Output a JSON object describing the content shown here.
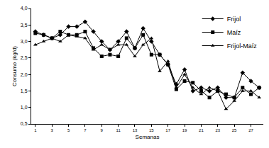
{
  "chart_data": {
    "type": "line",
    "x_label": "Semanas",
    "y_label": "Consumo (kg/d)",
    "x": [
      1,
      2,
      3,
      4,
      5,
      6,
      7,
      8,
      9,
      10,
      11,
      12,
      13,
      14,
      15,
      16,
      17,
      18,
      19,
      20,
      21,
      22,
      23,
      24,
      25,
      26,
      27,
      28
    ],
    "series": [
      {
        "name": "Frijol",
        "color": "#000000",
        "marker": "diamond",
        "values": [
          3.3,
          3.2,
          3.1,
          3.2,
          3.45,
          3.45,
          3.6,
          3.3,
          3.0,
          2.75,
          3.0,
          3.3,
          2.8,
          3.4,
          3.0,
          2.6,
          2.3,
          1.7,
          2.15,
          1.5,
          1.6,
          1.5,
          1.6,
          1.3,
          1.3,
          2.05,
          1.8,
          1.6
        ]
      },
      {
        "name": "Maíz",
        "color": "#000000",
        "marker": "square",
        "values": [
          3.25,
          3.2,
          3.1,
          3.3,
          3.2,
          3.2,
          3.3,
          2.8,
          2.55,
          2.6,
          2.55,
          3.1,
          2.8,
          3.2,
          2.6,
          2.6,
          2.3,
          1.55,
          1.8,
          1.75,
          1.5,
          1.3,
          1.5,
          1.4,
          1.3,
          1.6,
          1.4,
          1.6
        ]
      },
      {
        "name": "Frijol-Maíz",
        "color": "#000000",
        "marker": "triangle-up",
        "values": [
          2.9,
          3.0,
          3.1,
          3.0,
          3.2,
          3.15,
          3.1,
          2.75,
          2.9,
          2.75,
          2.9,
          2.9,
          2.55,
          2.9,
          3.1,
          2.1,
          2.4,
          1.6,
          2.0,
          1.6,
          1.4,
          1.6,
          1.5,
          0.95,
          1.2,
          1.5,
          1.5,
          1.3
        ]
      }
    ],
    "xlim": [
      0.5,
      28.5
    ],
    "xticks": [
      1,
      3,
      5,
      7,
      9,
      11,
      13,
      15,
      17,
      19,
      21,
      23,
      25,
      27
    ],
    "ylim": [
      0.5,
      4.0
    ],
    "yticks": [
      {
        "value": 0.5,
        "label": "0,5"
      },
      {
        "value": 1.0,
        "label": "1,0"
      },
      {
        "value": 1.5,
        "label": "1,5"
      },
      {
        "value": 2.0,
        "label": "2,0"
      },
      {
        "value": 2.5,
        "label": "2,5"
      },
      {
        "value": 3.0,
        "label": "3,0"
      },
      {
        "value": 3.5,
        "label": "3,5"
      },
      {
        "value": 4.0,
        "label": "4,0"
      }
    ],
    "grid": false,
    "legend": "top-right"
  }
}
